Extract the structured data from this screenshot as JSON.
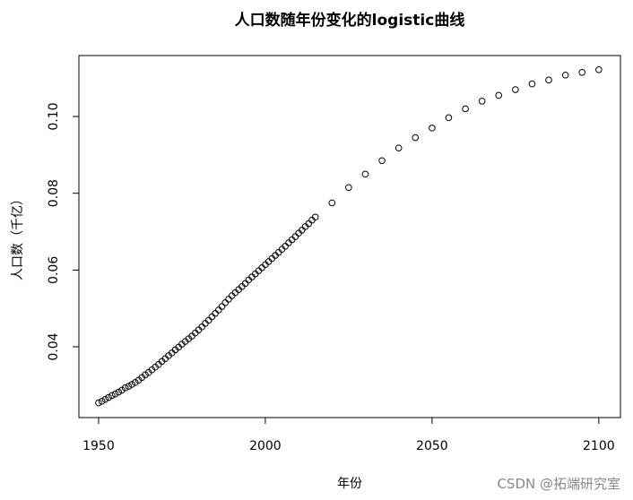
{
  "chart_data": {
    "type": "scatter",
    "title": "人口数随年份变化的logistic曲线",
    "x_label": "年份",
    "y_label": "人口数（千亿）",
    "watermark": "CSDN @拓端研究室",
    "x": [
      1950,
      1951,
      1952,
      1953,
      1954,
      1955,
      1956,
      1957,
      1958,
      1959,
      1960,
      1961,
      1962,
      1963,
      1964,
      1965,
      1966,
      1967,
      1968,
      1969,
      1970,
      1971,
      1972,
      1973,
      1974,
      1975,
      1976,
      1977,
      1978,
      1979,
      1980,
      1981,
      1982,
      1983,
      1984,
      1985,
      1986,
      1987,
      1988,
      1989,
      1990,
      1991,
      1992,
      1993,
      1994,
      1995,
      1996,
      1997,
      1998,
      1999,
      2000,
      2001,
      2002,
      2003,
      2004,
      2005,
      2006,
      2007,
      2008,
      2009,
      2010,
      2011,
      2012,
      2013,
      2014,
      2015,
      2020,
      2025,
      2030,
      2035,
      2040,
      2045,
      2050,
      2055,
      2060,
      2065,
      2070,
      2075,
      2080,
      2085,
      2090,
      2095,
      2100
    ],
    "series": [
      {
        "name": "人口数",
        "color": "#000000",
        "values": [
          0.0254,
          0.0258,
          0.0263,
          0.0268,
          0.0273,
          0.0277,
          0.0282,
          0.0287,
          0.0293,
          0.0297,
          0.0302,
          0.0307,
          0.0313,
          0.032,
          0.0327,
          0.0333,
          0.034,
          0.0347,
          0.0354,
          0.0362,
          0.0369,
          0.0377,
          0.0384,
          0.0392,
          0.0399,
          0.0407,
          0.0414,
          0.0421,
          0.0428,
          0.0436,
          0.0444,
          0.0452,
          0.0461,
          0.0469,
          0.0478,
          0.0487,
          0.0496,
          0.0505,
          0.0515,
          0.0524,
          0.0533,
          0.0541,
          0.0549,
          0.0557,
          0.0565,
          0.0574,
          0.0582,
          0.059,
          0.0598,
          0.0606,
          0.0614,
          0.0622,
          0.063,
          0.0638,
          0.0646,
          0.0654,
          0.0662,
          0.0671,
          0.0679,
          0.0687,
          0.0696,
          0.0704,
          0.0713,
          0.0721,
          0.073,
          0.0738,
          0.0775,
          0.0815,
          0.085,
          0.0885,
          0.0918,
          0.0945,
          0.097,
          0.0997,
          0.102,
          0.104,
          0.1055,
          0.107,
          0.1085,
          0.1095,
          0.1108,
          0.1115,
          0.1122
        ]
      }
    ],
    "xlim": [
      1944.1,
      2106.5
    ],
    "ylim": [
      0.02156,
      0.11588
    ],
    "xticks": [
      1950,
      2000,
      2050,
      2100
    ],
    "yticks": [
      0.04,
      0.06,
      0.08,
      {
        "value": 0.1,
        "label": "0.10"
      }
    ]
  }
}
